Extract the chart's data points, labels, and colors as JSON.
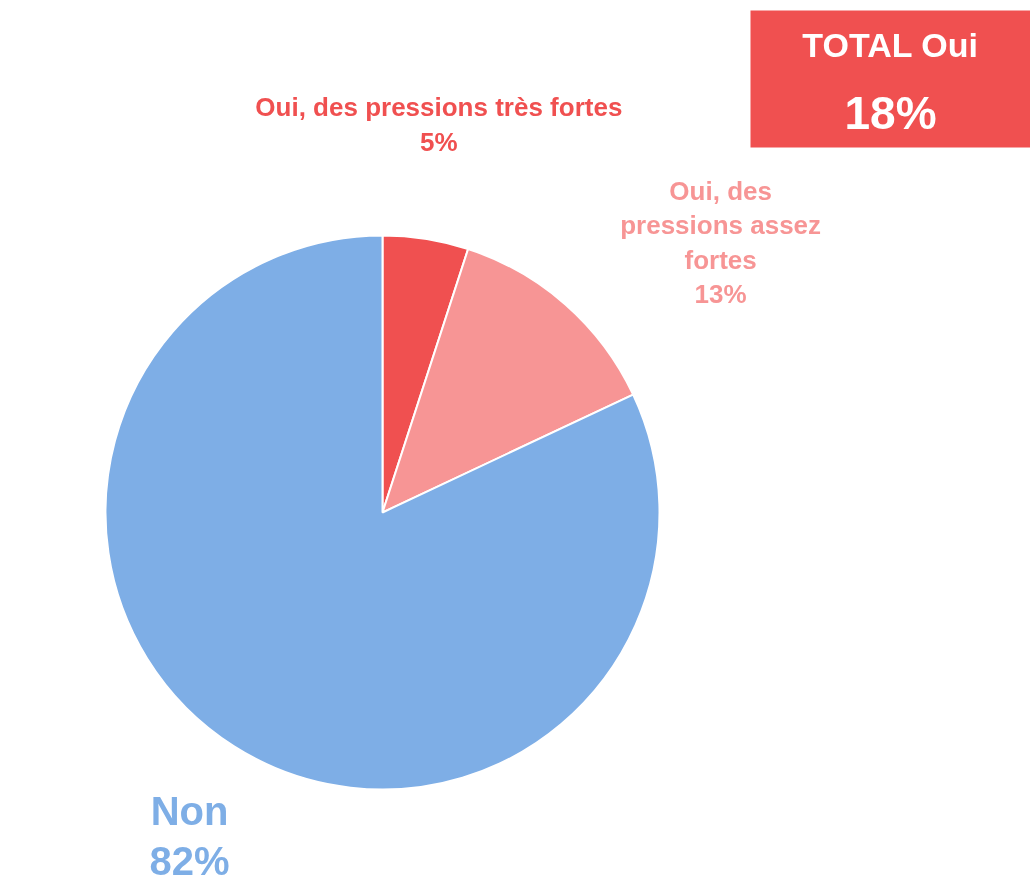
{
  "chart_data": {
    "type": "pie",
    "categories": [
      "Oui, des pressions très fortes",
      "Oui, des pressions assez fortes",
      "Non"
    ],
    "values": [
      5,
      13,
      82
    ],
    "value_labels": [
      "5%",
      "13%",
      "82%"
    ],
    "colors": [
      "#f05050",
      "#f79595",
      "#7eaee6"
    ],
    "annotations": [
      "TOTAL Oui\n18%"
    ]
  }
}
